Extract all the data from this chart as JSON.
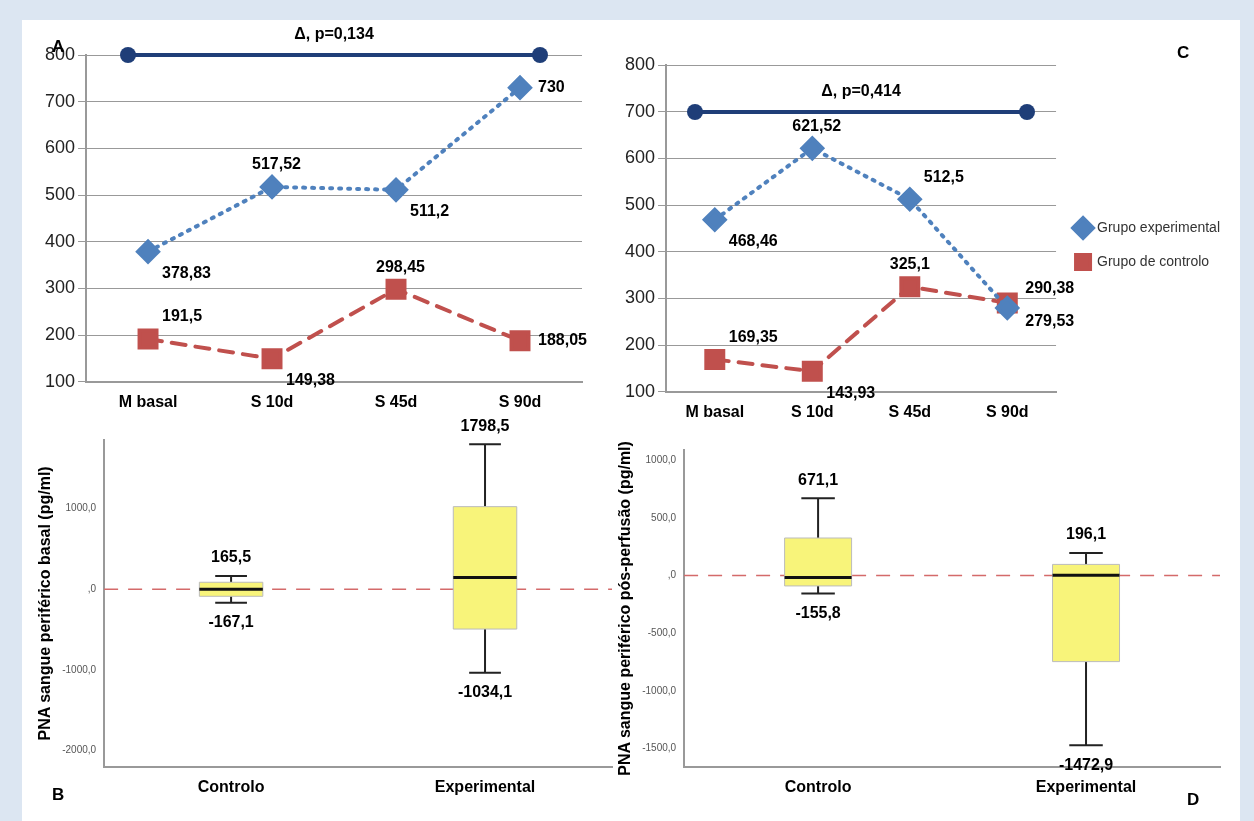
{
  "chart_data": [
    {
      "type": "line",
      "title": "Δ, p=0,134",
      "categories": [
        "M basal",
        "S 10d",
        "S 45d",
        "S 90d"
      ],
      "series": [
        {
          "color": "#4f81bd",
          "marker": "diamond",
          "line_style": "dotted",
          "values": [
            378.83,
            517.52,
            511.2,
            730
          ],
          "value_labels": [
            "378,83",
            "517,52",
            "511,2",
            "730"
          ]
        },
        {
          "color": "#c0504d",
          "marker": "square",
          "line_style": "dashed",
          "values": [
            191.5,
            149.38,
            298.45,
            188.05
          ],
          "value_labels": [
            "191,5",
            "149,38",
            "298,45",
            "188,05"
          ]
        }
      ],
      "ylim": [
        100,
        800
      ],
      "yticks": [
        100,
        200,
        300,
        400,
        500,
        600,
        700,
        800
      ],
      "grid": "y",
      "legend": false,
      "annotations": [
        "A"
      ]
    },
    {
      "type": "box",
      "categories": [
        "Controlo",
        "Experimental"
      ],
      "color": "#f8f47a",
      "ylabel": "PNA sangue periférico basal (pg/ml)",
      "boxes": [
        {
          "low": -167.1,
          "q1": -87,
          "median": 0,
          "q3": 87,
          "high": 165.5
        },
        {
          "low": -1034.1,
          "q1": -493,
          "median": 145,
          "q3": 1024,
          "high": 1798.5
        }
      ],
      "ylim": [
        -2200,
        1850
      ],
      "yticks": [
        {
          "value": -2000,
          "label": "-2000,0"
        },
        {
          "value": -1000,
          "label": "-1000,0"
        },
        {
          "value": 0,
          "label": ",0"
        },
        {
          "value": 1000,
          "label": "1000,0"
        }
      ],
      "ref_lines": [
        {
          "axis": "y",
          "value": 0,
          "color": "#d46a6a",
          "line_style": "dashed"
        }
      ],
      "annotations": [
        "B",
        {
          "text": "165,5",
          "x": "Controlo",
          "y": 165.5
        },
        {
          "text": "-167,1",
          "x": "Controlo",
          "y": -167.1
        },
        {
          "text": "1798,5",
          "x": "Experimental",
          "y": 1798.5
        },
        {
          "text": "-1034,1",
          "x": "Experimental",
          "y": -1034.1
        }
      ]
    },
    {
      "type": "line",
      "title": "Δ, p=0,414",
      "categories": [
        "M basal",
        "S 10d",
        "S 45d",
        "S 90d"
      ],
      "series": [
        {
          "name": "Grupo experimental",
          "color": "#4f81bd",
          "marker": "diamond",
          "line_style": "dotted",
          "values": [
            468.46,
            621.52,
            512.5,
            279.53
          ],
          "value_labels": [
            "468,46",
            "621,52",
            "512,5",
            "279,53"
          ]
        },
        {
          "name": "Grupo de controlo",
          "color": "#c0504d",
          "marker": "square",
          "line_style": "dashed",
          "values": [
            169.35,
            143.93,
            325.1,
            290.38
          ],
          "value_labels": [
            "169,35",
            "143,93",
            "325,1",
            "290,38"
          ]
        }
      ],
      "ylim": [
        100,
        800
      ],
      "yticks": [
        100,
        200,
        300,
        400,
        500,
        600,
        700,
        800
      ],
      "grid": "y",
      "legend": "right",
      "annotations": [
        "C"
      ]
    },
    {
      "type": "box",
      "categories": [
        "Controlo",
        "Experimental"
      ],
      "color": "#f8f47a",
      "ylabel": "PNA sangue periférico pós-perfusão (pg/ml)",
      "boxes": [
        {
          "low": -155.8,
          "q1": -90,
          "median": -17,
          "q3": 326,
          "high": 671.1
        },
        {
          "low": -1472.9,
          "q1": -747,
          "median": 3,
          "q3": 97,
          "high": 196.1
        }
      ],
      "ylim": [
        -1660,
        1090
      ],
      "yticks": [
        {
          "value": -1500,
          "label": "-1500,0"
        },
        {
          "value": -1000,
          "label": "-1000,0"
        },
        {
          "value": -500,
          "label": "-500,0"
        },
        {
          "value": 0,
          "label": ",0"
        },
        {
          "value": 500,
          "label": "500,0"
        },
        {
          "value": 1000,
          "label": "1000,0"
        }
      ],
      "ref_lines": [
        {
          "axis": "y",
          "value": 0,
          "color": "#d46a6a",
          "line_style": "dashed"
        }
      ],
      "annotations": [
        "D",
        {
          "text": "671,1",
          "x": "Controlo",
          "y": 671.1
        },
        {
          "text": "-155,8",
          "x": "Controlo",
          "y": -155.8
        },
        {
          "text": "196,1",
          "x": "Experimental",
          "y": 196.1
        },
        {
          "text": "-1472,9",
          "x": "Experimental",
          "y": -1472.9
        }
      ]
    }
  ]
}
